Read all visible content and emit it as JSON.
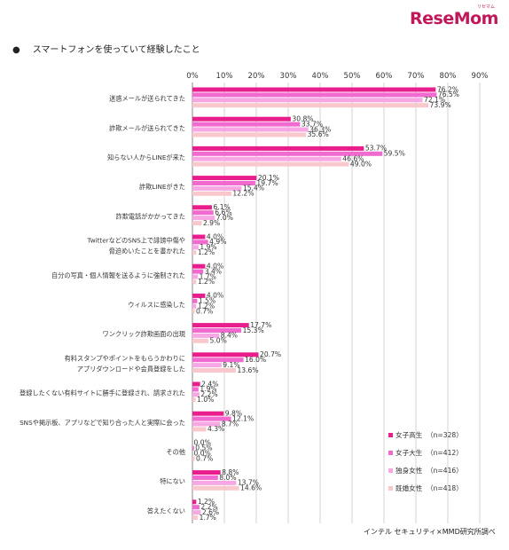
{
  "brand": {
    "name": "ReseMom",
    "tagline": "リセマム"
  },
  "header": {
    "bullet": "●",
    "title": "スマートフォンを使っていて経験したこと"
  },
  "source": "インテル セキュリティ×MMD研究所調べ",
  "colors": {
    "brand": "#c1185a",
    "series": [
      "#e91e8c",
      "#f06ad0",
      "#f7a8e4",
      "#f8c8cc"
    ],
    "grid": "#c8c8c8"
  },
  "chart_data": {
    "type": "bar",
    "orientation": "horizontal",
    "title": "スマートフォンを使っていて経験したこと",
    "xlim": [
      0,
      90
    ],
    "x_ticks": [
      "0%",
      "10%",
      "20%",
      "30%",
      "40%",
      "50%",
      "60%",
      "70%",
      "80%",
      "90%"
    ],
    "grid": true,
    "legend_position": "bottom-right",
    "categories": [
      [
        "迷惑メールが送られてきた"
      ],
      [
        "詐欺メールが送られてきた"
      ],
      [
        "知らない人からLINEが来た"
      ],
      [
        "詐欺LINEがきた"
      ],
      [
        "詐欺電話がかかってきた"
      ],
      [
        "TwitterなどのSNS上で誹謗中傷や",
        "脅迫めいたことを書かれた"
      ],
      [
        "自分の写真・個人情報を送るように強制された"
      ],
      [
        "ウィルスに感染した"
      ],
      [
        "ワンクリック詐欺画面の出現"
      ],
      [
        "有料スタンプやポイントをもらうかわりに",
        "アプリダウンロードや会員登録をした"
      ],
      [
        "登録したくない有料サイトに勝手に登録され、請求された"
      ],
      [
        "SNSや掲示板、アプリなどで知り合った人と実際に会った"
      ],
      [
        "その他"
      ],
      [
        "特にない"
      ],
      [
        "答えたくない"
      ]
    ],
    "series": [
      {
        "name": "女子高生",
        "n": "（n=328）",
        "values": [
          76.2,
          30.8,
          53.7,
          20.1,
          6.1,
          4.0,
          4.0,
          4.0,
          17.7,
          20.7,
          2.4,
          9.8,
          0.0,
          8.8,
          1.2
        ],
        "labels": [
          "76.2%",
          "30.8%",
          "53.7%",
          "20.1%",
          "6.1%",
          "4.0%",
          "4.0%",
          "4.0%",
          "17.7%",
          "20.7%",
          "2.4%",
          "9.8%",
          "0.0%",
          "8.8%",
          "1.2%"
        ]
      },
      {
        "name": "女子大生",
        "n": "（n=412）",
        "values": [
          76.5,
          33.7,
          59.5,
          19.7,
          6.6,
          4.9,
          3.4,
          1.5,
          15.3,
          16.0,
          1.9,
          12.1,
          0.5,
          8.0,
          2.2
        ],
        "labels": [
          "76.5%",
          "33.7%",
          "59.5%",
          "19.7%",
          "6.6%",
          "4.9%",
          "3.4%",
          "1.5%",
          "15.3%",
          "16.0%",
          "1.9%",
          "12.1%",
          "0.5%",
          "8.0%",
          "2.2%"
        ]
      },
      {
        "name": "独身女性",
        "n": "（n=416）",
        "values": [
          72.1,
          36.3,
          46.6,
          15.4,
          7.0,
          1.9,
          1.7,
          1.2,
          8.4,
          9.1,
          2.2,
          8.7,
          0.0,
          13.7,
          2.6
        ],
        "labels": [
          "72.1%",
          "36.3%",
          "46.6%",
          "15.4%",
          "7.0%",
          "1.9%",
          "1.7%",
          "1.2%",
          "8.4%",
          "9.1%",
          "2.2%",
          "8.7%",
          "0.0%",
          "13.7%",
          "2.6%"
        ]
      },
      {
        "name": "既婚女性",
        "n": "（n=418）",
        "values": [
          73.9,
          35.6,
          49.0,
          12.2,
          2.9,
          1.2,
          1.2,
          0.7,
          5.0,
          13.6,
          1.0,
          4.3,
          0.7,
          14.6,
          1.7
        ],
        "labels": [
          "73.9%",
          "35.6%",
          "49.0%",
          "12.2%",
          "2.9%",
          "1.2%",
          "1.2%",
          "0.7%",
          "5.0%",
          "13.6%",
          "1.0%",
          "4.3%",
          "0.7%",
          "14.6%",
          "1.7%"
        ]
      }
    ]
  }
}
